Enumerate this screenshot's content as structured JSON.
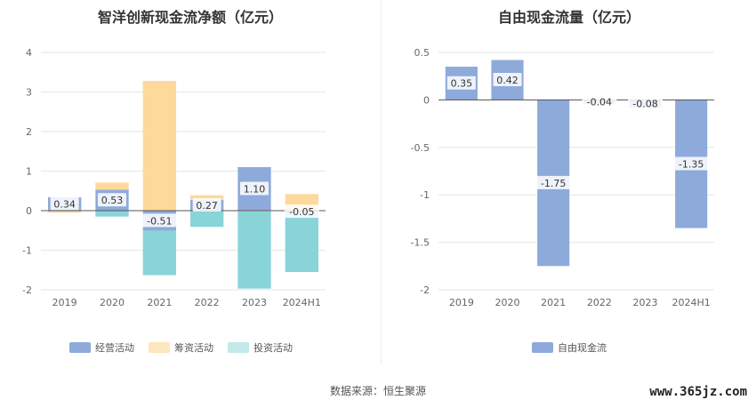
{
  "chart_data": [
    {
      "type": "bar",
      "title": "智洋创新现金流净额（亿元）",
      "categories": [
        "2019",
        "2020",
        "2021",
        "2022",
        "2023",
        "2024H1"
      ],
      "ylim": [
        -2,
        4
      ],
      "yticks": [
        -2,
        -1,
        0,
        1,
        2,
        3,
        4
      ],
      "grid": true,
      "legend_position": "bottom",
      "stacked": true,
      "series": [
        {
          "name": "经营活动",
          "color": "#8eaadb",
          "values": [
            0.34,
            0.53,
            -0.51,
            0.27,
            1.1,
            -0.05
          ],
          "labels": [
            "0.34",
            "0.53",
            "-0.51",
            "0.27",
            "1.10",
            "-0.05"
          ]
        },
        {
          "name": "筹资活动",
          "color": "#fdd99b",
          "values": [
            -0.05,
            0.18,
            3.28,
            0.12,
            -0.02,
            0.42
          ]
        },
        {
          "name": "投资活动",
          "color": "#88d4d9",
          "values": [
            0.0,
            -0.15,
            -1.12,
            -0.41,
            -1.95,
            -1.5
          ]
        }
      ]
    },
    {
      "type": "bar",
      "title": "自由现金流量（亿元）",
      "categories": [
        "2019",
        "2020",
        "2021",
        "2022",
        "2023",
        "2024H1"
      ],
      "ylim": [
        -2,
        0.5
      ],
      "yticks": [
        -2,
        -1.5,
        -1,
        -0.5,
        0,
        0.5
      ],
      "grid": true,
      "legend_position": "bottom",
      "series": [
        {
          "name": "自由现金流",
          "color": "#8eaadb",
          "values": [
            0.35,
            0.42,
            -1.75,
            -0.04,
            -0.08,
            -1.35
          ],
          "labels": [
            "0.35",
            "0.42",
            "-1.75",
            "-0.04",
            "-0.08",
            "-1.35"
          ]
        }
      ]
    }
  ],
  "footer": {
    "source": "数据来源：恒生聚源",
    "watermark": "www.365jz.com"
  }
}
